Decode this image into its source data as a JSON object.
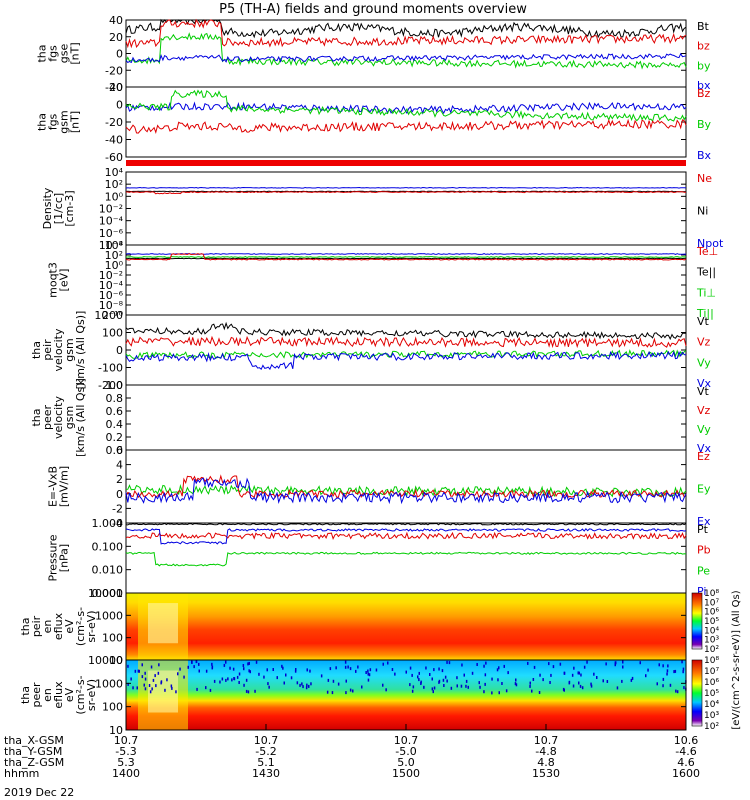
{
  "title": "P5 (TH-A) fields and ground moments overview",
  "colors": {
    "black": "#000000",
    "red": "#e00000",
    "green": "#00cc00",
    "blue": "#0000e0"
  },
  "x_axis": {
    "rows": [
      {
        "label": "tha_X-GSM",
        "values": [
          "10.7",
          "10.7",
          "10.7",
          "10.7",
          "10.6"
        ]
      },
      {
        "label": "tha_Y-GSM",
        "values": [
          "-5.3",
          "-5.2",
          "-5.0",
          "-4.8",
          "-4.6"
        ]
      },
      {
        "label": "tha_Z-GSM",
        "values": [
          "5.3",
          "5.1",
          "5.0",
          "4.8",
          "4.6"
        ]
      },
      {
        "label": "hhmm",
        "values": [
          "1400",
          "1430",
          "1500",
          "1530",
          "1600"
        ]
      }
    ],
    "date": "2019 Dec 22",
    "tick_minutes": [
      0,
      30,
      60,
      90,
      120
    ],
    "range_minutes": [
      0,
      120
    ]
  },
  "colorbar_label": "[eV/(cm^2-s-sr-eV)] (All Qs)",
  "colorbar_ticks": [
    "10⁸",
    "10⁷",
    "10⁶",
    "10⁵",
    "10⁴",
    "10³",
    "10²"
  ],
  "panels": [
    {
      "id": "fgs-gse",
      "ylabel": [
        "tha",
        "fgs",
        "gse",
        "[nT]"
      ],
      "ylim": [
        -40,
        40
      ],
      "ticks": [
        "40",
        "20",
        "0",
        "-20",
        "-40"
      ],
      "legend": [
        {
          "t": "Bt",
          "c": "black"
        },
        {
          "t": "bz",
          "c": "red"
        },
        {
          "t": "by",
          "c": "green"
        },
        {
          "t": "bx",
          "c": "blue"
        }
      ]
    },
    {
      "id": "fgs-gsm",
      "ylabel": [
        "tha",
        "fgs",
        "gsm",
        "[nT]"
      ],
      "ylim": [
        -60,
        20
      ],
      "ticks": [
        "20",
        "0",
        "-20",
        "-40",
        "-60"
      ],
      "legend": [
        {
          "t": "Bz",
          "c": "red"
        },
        {
          "t": "By",
          "c": "green"
        },
        {
          "t": "Bx",
          "c": "blue"
        }
      ]
    },
    {
      "id": "density",
      "ylabel": [
        "Density",
        "[1/cc]",
        "[cm-3]"
      ],
      "scale": "log",
      "ylim": [
        -8,
        4
      ],
      "ticks": [
        "10⁴",
        "10²",
        "10⁰",
        "10⁻²",
        "10⁻⁴",
        "10⁻⁶",
        "10⁻⁸"
      ],
      "legend": [
        {
          "t": "Ne",
          "c": "red"
        },
        {
          "t": "Ni",
          "c": "black"
        },
        {
          "t": "Npot",
          "c": "blue"
        }
      ]
    },
    {
      "id": "temp",
      "ylabel": [
        "moqt3",
        "[eV]"
      ],
      "scale": "log",
      "ylim": [
        -10,
        4
      ],
      "ticks": [
        "10⁴",
        "10²",
        "10⁰",
        "10⁻²",
        "10⁻⁴",
        "10⁻⁶",
        "10⁻⁸",
        "10⁻¹⁰"
      ],
      "legend": [
        {
          "t": "Te⊥",
          "c": "red"
        },
        {
          "t": "Te||",
          "c": "black"
        },
        {
          "t": "Ti⊥",
          "c": "green"
        },
        {
          "t": "Ti||",
          "c": "green"
        }
      ]
    },
    {
      "id": "peir-vel",
      "ylabel": [
        "tha",
        "peir",
        "velocity",
        "gsm",
        "[km/s (All Qs)]"
      ],
      "ylim": [
        -200,
        200
      ],
      "ticks": [
        "200",
        "100",
        "0",
        "-100",
        "-200"
      ],
      "legend": [
        {
          "t": "Vt",
          "c": "black"
        },
        {
          "t": "Vz",
          "c": "red"
        },
        {
          "t": "Vy",
          "c": "green"
        },
        {
          "t": "Vx",
          "c": "blue"
        }
      ]
    },
    {
      "id": "peer-vel",
      "ylabel": [
        "tha",
        "peer",
        "velocity",
        "gsm",
        "[km/s (All Qs)]"
      ],
      "ylim": [
        0,
        1
      ],
      "ticks": [
        "1.0",
        "0.8",
        "0.6",
        "0.4",
        "0.2",
        "0.0"
      ],
      "legend": [
        {
          "t": "Vt",
          "c": "black"
        },
        {
          "t": "Vz",
          "c": "red"
        },
        {
          "t": "Vy",
          "c": "green"
        },
        {
          "t": "Vx",
          "c": "blue"
        }
      ]
    },
    {
      "id": "efield",
      "ylabel": [
        "E=-VxB",
        "[mV/m]"
      ],
      "ylim": [
        -4,
        6
      ],
      "ticks": [
        "6",
        "4",
        "2",
        "0",
        "-2",
        "-4"
      ],
      "legend": [
        {
          "t": "Ez",
          "c": "red"
        },
        {
          "t": "Ey",
          "c": "green"
        },
        {
          "t": "Ex",
          "c": "blue"
        }
      ]
    },
    {
      "id": "pressure",
      "ylabel": [
        "Pressure",
        "[nPa]"
      ],
      "scale": "log",
      "ylim": [
        -3,
        0
      ],
      "ticks": [
        "1.000",
        "0.100",
        "0.010",
        "0.001"
      ],
      "legend": [
        {
          "t": "Pt",
          "c": "black"
        },
        {
          "t": "Pb",
          "c": "red"
        },
        {
          "t": "Pe",
          "c": "green"
        },
        {
          "t": "Pi",
          "c": "blue"
        }
      ]
    },
    {
      "id": "peir-spec",
      "ylabel": [
        "tha",
        "peir",
        "en",
        "eflux",
        "eV",
        "(cm²-s-",
        "sr-eV)"
      ],
      "scale": "log",
      "ylim": [
        0.85,
        4.3
      ],
      "ticks": [
        "10000",
        "1000",
        "100",
        "10"
      ]
    },
    {
      "id": "peer-spec",
      "ylabel": [
        "tha",
        "peer",
        "en",
        "eflux",
        "eV",
        "(cm²-s-",
        "sr-eV)"
      ],
      "scale": "log",
      "ylim": [
        0.85,
        4.3
      ],
      "ticks": [
        "10000",
        "1000",
        "100",
        "10"
      ]
    }
  ]
}
